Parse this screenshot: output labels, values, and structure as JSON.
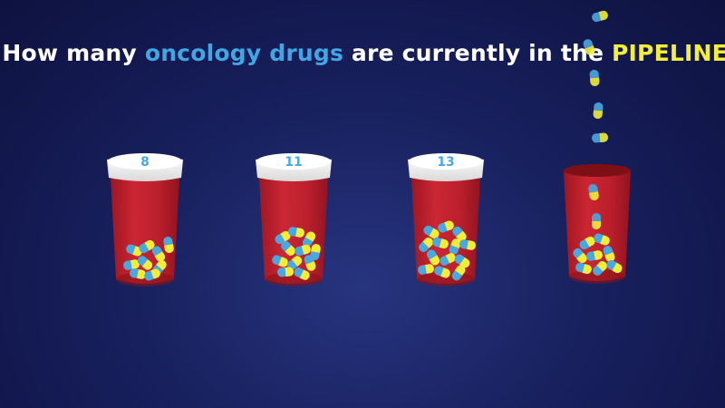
{
  "question": {
    "part1": "How many ",
    "highlight1": "oncology drugs",
    "part2": " are currently in the ",
    "highlight2": "PIPELINE?"
  },
  "bottles": [
    {
      "lid_label": "8"
    },
    {
      "lid_label": "11"
    },
    {
      "lid_label": "13"
    },
    {
      "lid_label": ""
    }
  ],
  "colors": {
    "background": "#18205e",
    "bottle_red": "#d0222b",
    "lid_white": "#f4f4f4",
    "lid_label": "#4aa8df",
    "pill_blue": "#4aa8df",
    "pill_yellow": "#f4ee35",
    "highlight_blue": "#3fa7e6",
    "highlight_yellow": "#f4ee35"
  }
}
